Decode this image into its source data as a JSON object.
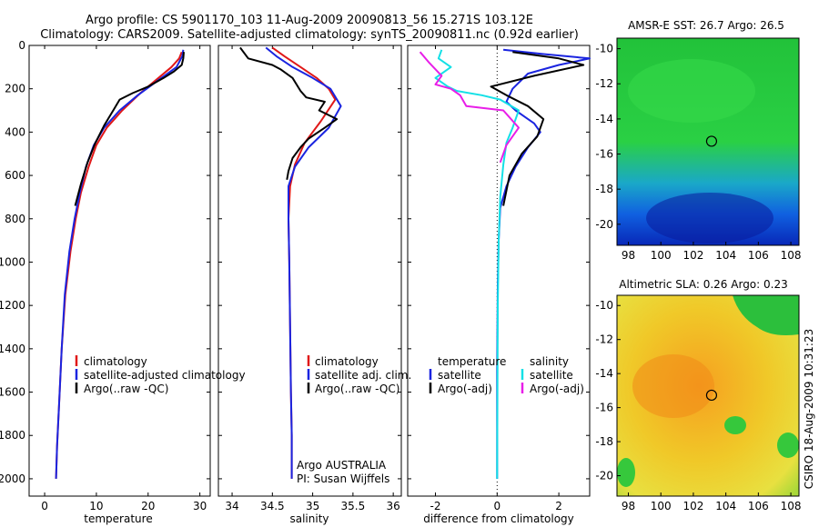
{
  "title": {
    "line1": "Argo profile: CS 5901170_103 11-Aug-2009 20090813_56 15.271S 103.12E",
    "line2": "Climatology: CARS2009. Satellite-adjusted climatology: synTS_20090811.nc (0.92d earlier)"
  },
  "colors": {
    "red": "#e01818",
    "blue": "#1a24e0",
    "black": "#000000",
    "cyan": "#14e0e6",
    "magenta": "#e81ee8"
  },
  "chart_data": [
    {
      "type": "line",
      "xlabel": "temperature",
      "ylim": [
        2080,
        0
      ],
      "xlim": [
        -3,
        32
      ],
      "xticks": [
        0,
        10,
        20,
        30
      ],
      "yticks": [
        0,
        200,
        400,
        600,
        800,
        1000,
        1200,
        1400,
        1600,
        1800,
        2000
      ],
      "legend": [
        "climatology",
        "satellite-adjusted climatology",
        "Argo(..raw -QC)"
      ],
      "series": [
        {
          "name": "climatology",
          "color": "red",
          "x": [
            26.5,
            26,
            24.5,
            22,
            18.5,
            15,
            12,
            10,
            8.5,
            7,
            6,
            5,
            4,
            3.3,
            2.8,
            2.4,
            2.2
          ],
          "y": [
            30,
            60,
            100,
            150,
            220,
            300,
            380,
            460,
            560,
            680,
            800,
            950,
            1150,
            1400,
            1650,
            1850,
            2000
          ]
        },
        {
          "name": "satellite-adjusted climatology",
          "color": "blue",
          "x": [
            26.8,
            26.6,
            25.5,
            22,
            18,
            14.5,
            11.5,
            9.5,
            8,
            6.8,
            5.8,
            4.8,
            3.9,
            3.3,
            2.8,
            2.4,
            2.2
          ],
          "y": [
            20,
            50,
            100,
            160,
            230,
            300,
            380,
            460,
            560,
            680,
            800,
            950,
            1150,
            1400,
            1650,
            1850,
            2000
          ]
        },
        {
          "name": "Argo(..raw -QC)",
          "color": "black",
          "x": [
            26.9,
            26.8,
            26.5,
            25,
            23,
            20,
            17,
            14.5,
            13.5,
            11.5,
            9.8,
            8.3,
            7,
            5.9
          ],
          "y": [
            30,
            60,
            90,
            120,
            150,
            190,
            220,
            250,
            290,
            370,
            450,
            540,
            640,
            740
          ]
        }
      ]
    },
    {
      "type": "line",
      "xlabel": "salinity",
      "ylim": [
        2080,
        0
      ],
      "xlim": [
        33.83,
        36.1
      ],
      "xticks": [
        34,
        34.5,
        35,
        35.5,
        36
      ],
      "legend": [
        "climatology",
        "satellite adj. clim.",
        "Argo(..raw -QC)"
      ],
      "annotation": [
        "Argo AUSTRALIA",
        "PI: Susan Wijffels"
      ],
      "series": [
        {
          "name": "climatology",
          "color": "red",
          "x": [
            34.5,
            34.65,
            34.85,
            35.05,
            35.2,
            35.28,
            35.1,
            34.9,
            34.78,
            34.72,
            34.7,
            34.71,
            34.72,
            34.73,
            34.74,
            34.74
          ],
          "y": [
            10,
            50,
            100,
            150,
            200,
            250,
            350,
            450,
            550,
            650,
            800,
            1000,
            1300,
            1600,
            1800,
            2000
          ]
        },
        {
          "name": "satellite adj. clim.",
          "color": "blue",
          "x": [
            34.42,
            34.55,
            34.75,
            35.0,
            35.22,
            35.35,
            35.2,
            34.95,
            34.78,
            34.7,
            34.7,
            34.71,
            34.72,
            34.73,
            34.74,
            34.74
          ],
          "y": [
            10,
            50,
            100,
            150,
            200,
            280,
            380,
            470,
            560,
            650,
            800,
            1000,
            1300,
            1600,
            1800,
            2000
          ]
        },
        {
          "name": "Argo(..raw -QC)",
          "color": "black",
          "x": [
            34.1,
            34.2,
            34.5,
            34.6,
            34.75,
            34.85,
            34.92,
            35.15,
            35.08,
            35.3,
            35.15,
            34.95,
            34.85,
            34.75,
            34.7,
            34.68
          ],
          "y": [
            10,
            60,
            90,
            110,
            150,
            210,
            240,
            260,
            300,
            340,
            380,
            430,
            470,
            520,
            580,
            620
          ]
        }
      ]
    },
    {
      "type": "line",
      "xlabel": "difference from climatology",
      "ylim": [
        2080,
        0
      ],
      "xlim": [
        -2.9,
        3.0
      ],
      "xticks": [
        -2,
        0,
        2
      ],
      "legend_temperature": {
        "heading": "temperature",
        "items": [
          "satellite",
          "Argo(-adj)"
        ]
      },
      "legend_salinity": {
        "heading": "salinity",
        "items": [
          "satellite",
          "Argo(-adj)"
        ]
      },
      "series": [
        {
          "name": "temperature satellite",
          "color": "blue",
          "x": [
            0.2,
            1.5,
            3.0,
            2.0,
            1.0,
            0.5,
            0.3,
            0.6,
            0.9,
            1.2,
            1.4,
            1.0,
            0.6,
            0.3,
            0.1,
            0.05,
            0.02,
            0.0,
            0.0
          ],
          "y": [
            20,
            40,
            60,
            90,
            130,
            200,
            260,
            300,
            330,
            360,
            400,
            470,
            560,
            650,
            750,
            900,
            1100,
            1500,
            2000
          ]
        },
        {
          "name": "temperature Argo(-adj)",
          "color": "black",
          "x": [
            0.5,
            2.0,
            2.8,
            1.2,
            -0.2,
            0.3,
            1.0,
            1.5,
            1.3,
            0.8,
            0.4,
            0.2
          ],
          "y": [
            30,
            60,
            90,
            140,
            190,
            230,
            280,
            340,
            420,
            500,
            600,
            740
          ]
        },
        {
          "name": "salinity satellite",
          "color": "cyan",
          "x": [
            -1.8,
            -1.9,
            -1.5,
            -2.0,
            -1.6,
            -1.3,
            -0.5,
            0.1,
            0.7,
            0.5,
            0.3,
            0.2,
            0.1,
            0.05,
            0.02,
            0.0
          ],
          "y": [
            20,
            60,
            100,
            150,
            190,
            210,
            230,
            250,
            300,
            380,
            450,
            550,
            700,
            900,
            1200,
            2000
          ]
        },
        {
          "name": "salinity Argo(-adj)",
          "color": "magenta",
          "x": [
            -2.5,
            -2.2,
            -1.8,
            -2.0,
            -1.5,
            -1.2,
            -1.0,
            0.2,
            0.7,
            0.3,
            0.1
          ],
          "y": [
            30,
            80,
            140,
            180,
            200,
            230,
            280,
            300,
            380,
            460,
            540
          ]
        }
      ]
    }
  ],
  "maps": [
    {
      "title": "AMSR-E SST: 26.7  Argo: 26.5",
      "xticks": [
        "98",
        "100",
        "102",
        "104",
        "106",
        "108"
      ],
      "yticks": [
        "-10",
        "-12",
        "-14",
        "-16",
        "-18",
        "-20"
      ],
      "float_marker": {
        "lon": 103.12,
        "lat": -15.27
      }
    },
    {
      "title": "Altimetric SLA: 0.26  Argo: 0.23",
      "xticks": [
        "98",
        "100",
        "102",
        "104",
        "106",
        "108"
      ],
      "yticks": [
        "-10",
        "-12",
        "-14",
        "-16",
        "-18",
        "-20"
      ],
      "float_marker": {
        "lon": 103.12,
        "lat": -15.27
      }
    }
  ],
  "credit": "CSIRO 18-Aug-2009 10:31:23"
}
